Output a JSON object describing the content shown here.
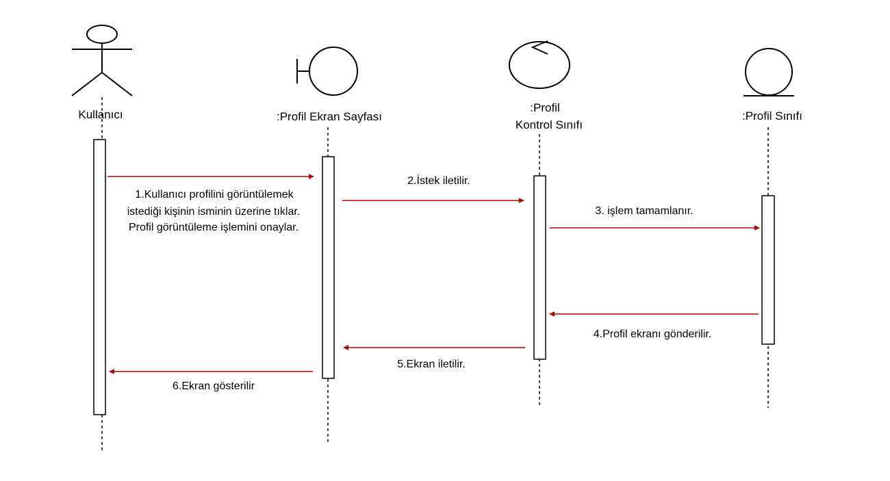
{
  "participants": [
    {
      "id": "user",
      "kind": "actor",
      "label": "Kullanıcı"
    },
    {
      "id": "screen",
      "kind": "boundary",
      "label": ":Profil Ekran Sayfası"
    },
    {
      "id": "control",
      "kind": "control",
      "label_line1": ":Profil",
      "label_line2": "Kontrol Sınıfı"
    },
    {
      "id": "entity",
      "kind": "entity",
      "label": ":Profil Sınıfı"
    }
  ],
  "messages": [
    {
      "from": "user",
      "to": "screen",
      "lines": [
        "1.Kullanıcı profilini görüntülemek",
        "istediği kişinin isminin üzerine tıklar.",
        "Profil görüntüleme işlemini onaylar."
      ]
    },
    {
      "from": "screen",
      "to": "control",
      "label": "2.İstek iletilir."
    },
    {
      "from": "control",
      "to": "entity",
      "label": "3. işlem tamamlanır."
    },
    {
      "from": "entity",
      "to": "control",
      "label": "4.Profil ekranı gönderilir."
    },
    {
      "from": "control",
      "to": "screen",
      "label": "5.Ekran iletilir."
    },
    {
      "from": "screen",
      "to": "user",
      "label": "6.Ekran gösterilir"
    }
  ],
  "colors": {
    "arrow": "#b20000",
    "line": "#000000",
    "background": "#ffffff"
  }
}
